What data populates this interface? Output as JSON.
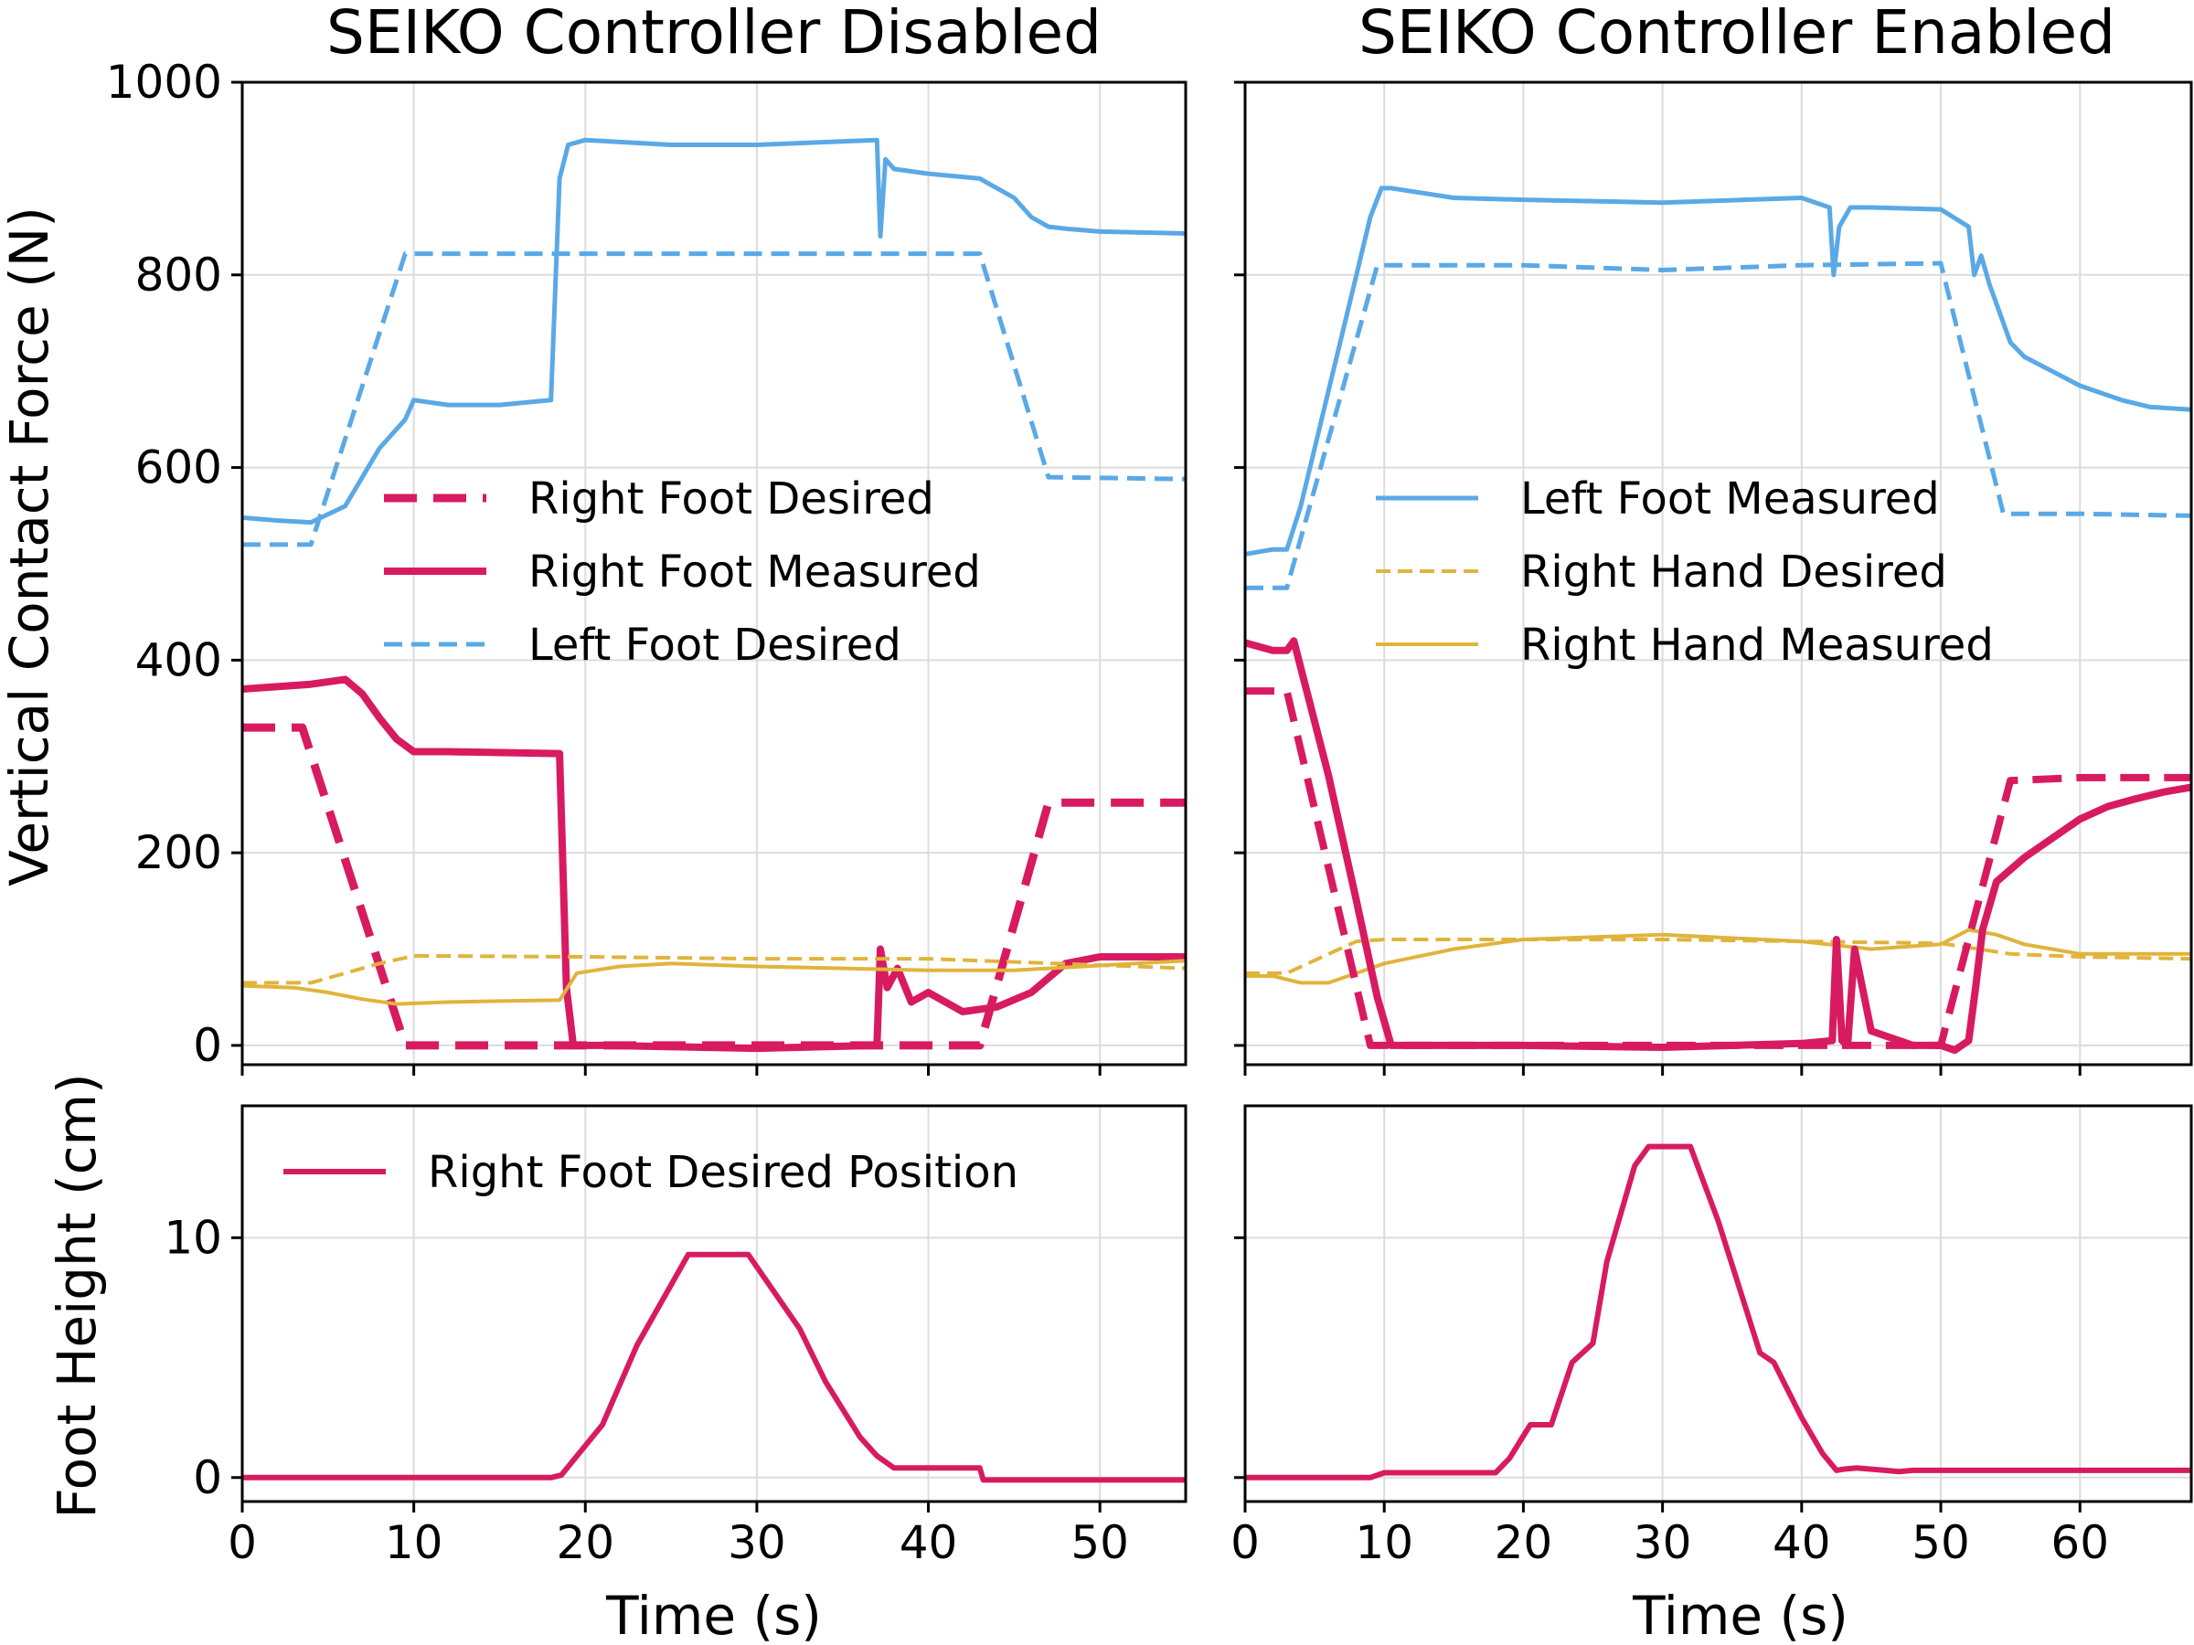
{
  "colors": {
    "right_foot": "#D81B60",
    "left_foot": "#5AA9E6",
    "right_hand": "#E0B43C",
    "grid": "#dcdcdc"
  },
  "chart_data": [
    {
      "id": "force_disabled",
      "type": "line",
      "title": "SEIKO Controller Disabled",
      "xlabel": "",
      "ylabel": "Vertical Contact Force (N)",
      "xlim": [
        0,
        55
      ],
      "ylim": [
        -20,
        1000
      ],
      "xticks": [
        0,
        10,
        20,
        30,
        40,
        50
      ],
      "xtick_labels": [
        "",
        "",
        "",
        "",
        "",
        ""
      ],
      "yticks": [
        0,
        200,
        400,
        600,
        800,
        1000
      ],
      "ytick_labels": [
        "0",
        "200",
        "400",
        "600",
        "800",
        "1000"
      ],
      "grid": true,
      "legend_position": "center",
      "series": [
        {
          "name": "Right Foot Desired",
          "color": "#D81B60",
          "style": "dashed",
          "width": 9,
          "x": [
            0,
            3.5,
            9.5,
            43,
            47,
            55
          ],
          "y": [
            330,
            330,
            0,
            0,
            252,
            252
          ]
        },
        {
          "name": "Right Foot Measured",
          "color": "#D81B60",
          "style": "solid",
          "width": 8,
          "x": [
            0,
            4,
            6,
            7,
            8,
            9,
            10,
            12,
            18.5,
            18.9,
            19.3,
            21,
            30,
            37,
            37.2,
            37.6,
            38.2,
            39,
            40,
            42,
            44,
            46,
            48,
            50,
            55
          ],
          "y": [
            370,
            375,
            380,
            365,
            340,
            318,
            305,
            305,
            303,
            60,
            0,
            0,
            -3,
            0,
            100,
            60,
            80,
            45,
            55,
            35,
            40,
            55,
            85,
            92,
            92
          ]
        },
        {
          "name": "Left Foot Desired",
          "color": "#5AA9E6",
          "style": "dashed",
          "width": 5,
          "x": [
            0,
            4,
            9.5,
            43,
            47,
            55
          ],
          "y": [
            520,
            520,
            822,
            822,
            590,
            588
          ]
        },
        {
          "name": "",
          "color": "#5AA9E6",
          "style": "solid",
          "width": 5,
          "x": [
            0,
            2,
            4,
            6,
            8,
            9.5,
            10,
            12,
            15,
            18,
            18.5,
            19,
            20,
            25,
            30,
            37,
            37.2,
            37.5,
            38,
            40,
            43,
            45,
            46,
            47,
            48,
            50,
            55
          ],
          "y": [
            548,
            545,
            543,
            560,
            620,
            650,
            670,
            665,
            665,
            670,
            900,
            935,
            940,
            935,
            935,
            940,
            840,
            920,
            910,
            905,
            900,
            880,
            860,
            850,
            848,
            845,
            843
          ]
        },
        {
          "name": "",
          "color": "#E0B43C",
          "style": "dashed",
          "width": 4,
          "x": [
            0,
            4,
            8,
            10,
            20,
            30,
            40,
            55
          ],
          "y": [
            65,
            65,
            85,
            93,
            92,
            90,
            90,
            80
          ]
        },
        {
          "name": "",
          "color": "#E0B43C",
          "style": "solid",
          "width": 4,
          "x": [
            0,
            3,
            5,
            7,
            9,
            12,
            15,
            18.5,
            19.5,
            22,
            25,
            30,
            35,
            40,
            45,
            55
          ],
          "y": [
            62,
            60,
            55,
            48,
            43,
            45,
            46,
            47,
            75,
            82,
            85,
            82,
            80,
            78,
            78,
            88
          ]
        }
      ]
    },
    {
      "id": "force_enabled",
      "type": "line",
      "title": "SEIKO Controller Enabled",
      "xlabel": "",
      "ylabel": "",
      "xlim": [
        0,
        68
      ],
      "ylim": [
        -20,
        1000
      ],
      "xticks": [
        0,
        10,
        20,
        30,
        40,
        50,
        60
      ],
      "xtick_labels": [
        "",
        "",
        "",
        "",
        "",
        "",
        ""
      ],
      "yticks": [
        0,
        200,
        400,
        600,
        800,
        1000
      ],
      "ytick_labels": [
        "",
        "",
        "",
        "",
        "",
        ""
      ],
      "grid": true,
      "legend_position": "center-right",
      "series": [
        {
          "name": "Left Foot Measured",
          "color": "#5AA9E6",
          "style": "solid",
          "width": 5,
          "x": [
            0,
            2,
            3,
            4,
            6,
            8,
            9,
            9.8,
            10.5,
            15,
            20,
            30,
            40,
            42,
            42.3,
            42.7,
            43.5,
            45,
            50,
            52,
            52.4,
            52.9,
            53.5,
            54,
            55,
            56,
            58,
            60,
            63,
            65,
            68
          ],
          "y": [
            510,
            515,
            515,
            560,
            680,
            800,
            860,
            890,
            890,
            880,
            878,
            875,
            880,
            870,
            800,
            850,
            870,
            870,
            868,
            850,
            800,
            820,
            790,
            770,
            730,
            715,
            700,
            685,
            670,
            663,
            660
          ]
        },
        {
          "name": "Right Hand Desired",
          "color": "#E0B43C",
          "style": "dashed",
          "width": 4,
          "x": [
            0,
            3,
            6,
            8,
            10,
            20,
            30,
            40,
            50,
            55,
            60,
            68
          ],
          "y": [
            75,
            75,
            95,
            108,
            110,
            110,
            110,
            108,
            106,
            95,
            92,
            90
          ]
        },
        {
          "name": "Right Hand Measured",
          "color": "#E0B43C",
          "style": "solid",
          "width": 4,
          "x": [
            0,
            2,
            4,
            6,
            8,
            10,
            15,
            20,
            30,
            40,
            45,
            50,
            52,
            54,
            56,
            58,
            60,
            64,
            68
          ],
          "y": [
            72,
            72,
            65,
            65,
            75,
            85,
            100,
            110,
            115,
            108,
            100,
            105,
            120,
            115,
            105,
            100,
            95,
            95,
            95
          ]
        },
        {
          "name": "",
          "color": "#5AA9E6",
          "style": "dashed",
          "width": 5,
          "x": [
            0,
            3,
            9.5,
            20,
            30,
            40,
            50,
            54.5,
            60,
            68
          ],
          "y": [
            475,
            475,
            810,
            810,
            805,
            810,
            812,
            552,
            552,
            550
          ]
        },
        {
          "name": "",
          "color": "#D81B60",
          "style": "dashed",
          "width": 8,
          "x": [
            0,
            3,
            9,
            50,
            55,
            60,
            68
          ],
          "y": [
            368,
            368,
            0,
            0,
            275,
            278,
            278
          ]
        },
        {
          "name": "",
          "color": "#D81B60",
          "style": "solid",
          "width": 8,
          "x": [
            0,
            2,
            3,
            3.5,
            6,
            8,
            9.5,
            10.5,
            20,
            30,
            40,
            42.2,
            42.5,
            42.9,
            43.3,
            43.8,
            45,
            48,
            50,
            51,
            52,
            52.5,
            53,
            54,
            56,
            58,
            60,
            62,
            64,
            66,
            68
          ],
          "y": [
            418,
            410,
            410,
            420,
            280,
            150,
            50,
            0,
            0,
            -2,
            2,
            5,
            110,
            5,
            0,
            100,
            15,
            0,
            0,
            -5,
            5,
            60,
            120,
            170,
            195,
            215,
            235,
            248,
            256,
            263,
            268
          ]
        }
      ]
    },
    {
      "id": "height_disabled",
      "type": "line",
      "title": "",
      "xlabel": "Time (s)",
      "ylabel": "Foot Height (cm)",
      "xlim": [
        0,
        55
      ],
      "ylim": [
        -1.0,
        15.5
      ],
      "xticks": [
        0,
        10,
        20,
        30,
        40,
        50
      ],
      "xtick_labels": [
        "0",
        "10",
        "20",
        "30",
        "40",
        "50"
      ],
      "yticks": [
        0,
        10
      ],
      "ytick_labels": [
        "0",
        "10"
      ],
      "grid": true,
      "legend_position": "top-left",
      "series": [
        {
          "name": "Right Foot Desired Position",
          "color": "#D81B60",
          "style": "solid",
          "width": 6,
          "x": [
            0,
            18,
            18.6,
            21,
            23,
            26,
            29.5,
            32.5,
            34,
            36,
            37,
            38,
            43,
            43.2,
            46,
            55
          ],
          "y": [
            0,
            0,
            0.1,
            2.2,
            5.5,
            9.3,
            9.3,
            6.2,
            4.0,
            1.7,
            0.9,
            0.4,
            0.4,
            -0.1,
            -0.1,
            -0.1
          ]
        }
      ]
    },
    {
      "id": "height_enabled",
      "type": "line",
      "title": "",
      "xlabel": "Time (s)",
      "ylabel": "",
      "xlim": [
        0,
        68
      ],
      "ylim": [
        -1.0,
        15.5
      ],
      "xticks": [
        0,
        10,
        20,
        30,
        40,
        50,
        60
      ],
      "xtick_labels": [
        "0",
        "10",
        "20",
        "30",
        "40",
        "50",
        "60"
      ],
      "yticks": [
        0,
        10
      ],
      "ytick_labels": [
        "",
        ""
      ],
      "grid": true,
      "legend_position": "none",
      "series": [
        {
          "name": "",
          "color": "#D81B60",
          "style": "solid",
          "width": 6,
          "x": [
            0,
            9,
            10,
            18,
            19,
            20.5,
            22,
            23.5,
            25,
            26,
            28,
            29,
            32,
            34,
            37,
            38,
            40,
            41.5,
            42.5,
            43,
            44,
            46,
            47,
            48,
            68
          ],
          "y": [
            0,
            0,
            0.2,
            0.2,
            0.8,
            2.2,
            2.2,
            4.8,
            5.6,
            9.0,
            13.0,
            13.8,
            13.8,
            10.7,
            5.2,
            4.8,
            2.5,
            1.0,
            0.3,
            0.35,
            0.4,
            0.3,
            0.25,
            0.3,
            0.3
          ]
        }
      ]
    }
  ]
}
